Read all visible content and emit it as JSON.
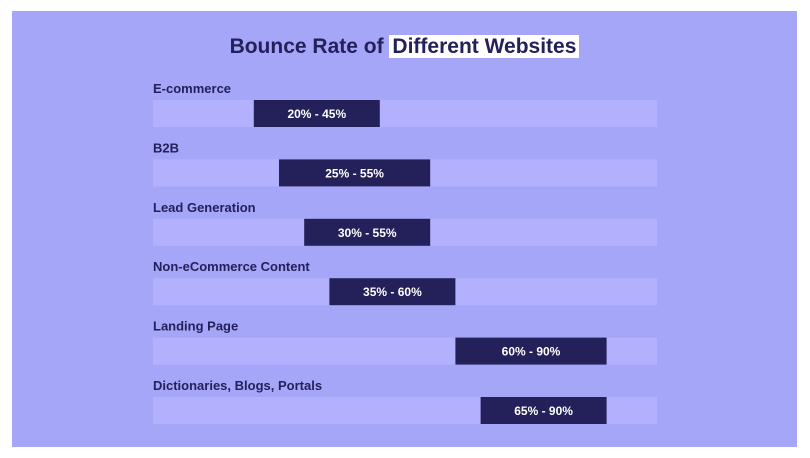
{
  "title_part1": "Bounce Rate of ",
  "title_part2": "Different Websites",
  "colors": {
    "background": "#a6a6f8",
    "track": "#b3b1fd",
    "range_bar": "#23205a",
    "text_dark": "#23205a",
    "text_light": "#ffffff"
  },
  "chart_data": {
    "type": "bar",
    "orientation": "horizontal-range",
    "title": "Bounce Rate of Different Websites",
    "xlim": [
      0,
      100
    ],
    "unit": "%",
    "categories": [
      "E-commerce",
      "B2B",
      "Lead Generation",
      "Non-eCommerce Content",
      "Landing Page",
      "Dictionaries, Blogs, Portals"
    ],
    "ranges": [
      {
        "low": 20,
        "high": 45,
        "label": "20% - 45%"
      },
      {
        "low": 25,
        "high": 55,
        "label": "25% - 55%"
      },
      {
        "low": 30,
        "high": 55,
        "label": "30% - 55%"
      },
      {
        "low": 35,
        "high": 60,
        "label": "35% - 60%"
      },
      {
        "low": 60,
        "high": 90,
        "label": "60% - 90%"
      },
      {
        "low": 65,
        "high": 90,
        "label": "65% - 90%"
      }
    ]
  }
}
